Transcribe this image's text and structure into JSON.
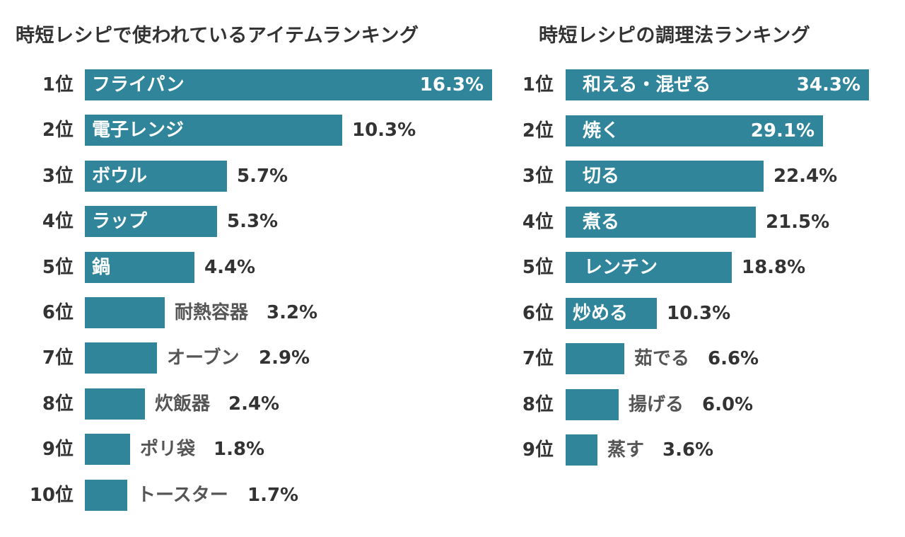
{
  "chart_data": [
    {
      "type": "bar",
      "orientation": "horizontal",
      "title": "時短レシピで使われているアイテムランキング",
      "unit": "%",
      "xlim": [
        0,
        16.3
      ],
      "grid": false,
      "legend": "none",
      "bar_color": "#31859b",
      "categories": [
        "フライパン",
        "電子レンジ",
        "ボウル",
        "ラップ",
        "鍋",
        "耐熱容器",
        "オーブン",
        "炊飯器",
        "ポリ袋",
        "トースター"
      ],
      "ranks": [
        "1位",
        "2位",
        "3位",
        "4位",
        "5位",
        "6位",
        "7位",
        "8位",
        "9位",
        "10位"
      ],
      "values": [
        16.3,
        10.3,
        5.7,
        5.3,
        4.4,
        3.2,
        2.9,
        2.4,
        1.8,
        1.7
      ],
      "value_labels": [
        "16.3%",
        "10.3%",
        "5.7%",
        "5.3%",
        "4.4%",
        "3.2%",
        "2.9%",
        "2.4%",
        "1.8%",
        "1.7%"
      ]
    },
    {
      "type": "bar",
      "orientation": "horizontal",
      "title": "時短レシピの調理法ランキング",
      "unit": "%",
      "xlim": [
        0,
        34.3
      ],
      "grid": false,
      "legend": "none",
      "bar_color": "#31859b",
      "categories": [
        "和える・混ぜる",
        "焼く",
        "切る",
        "煮る",
        "レンチン",
        "炒める",
        "茹でる",
        "揚げる",
        "蒸す"
      ],
      "ranks": [
        "1位",
        "2位",
        "3位",
        "4位",
        "5位",
        "6位",
        "7位",
        "8位",
        "9位"
      ],
      "values": [
        34.3,
        29.1,
        22.4,
        21.5,
        18.8,
        10.3,
        6.6,
        6.0,
        3.6
      ],
      "value_labels": [
        "34.3%",
        "29.1%",
        "22.4%",
        "21.5%",
        "18.8%",
        "10.3%",
        "6.6%",
        "6.0%",
        "3.6%"
      ]
    }
  ]
}
